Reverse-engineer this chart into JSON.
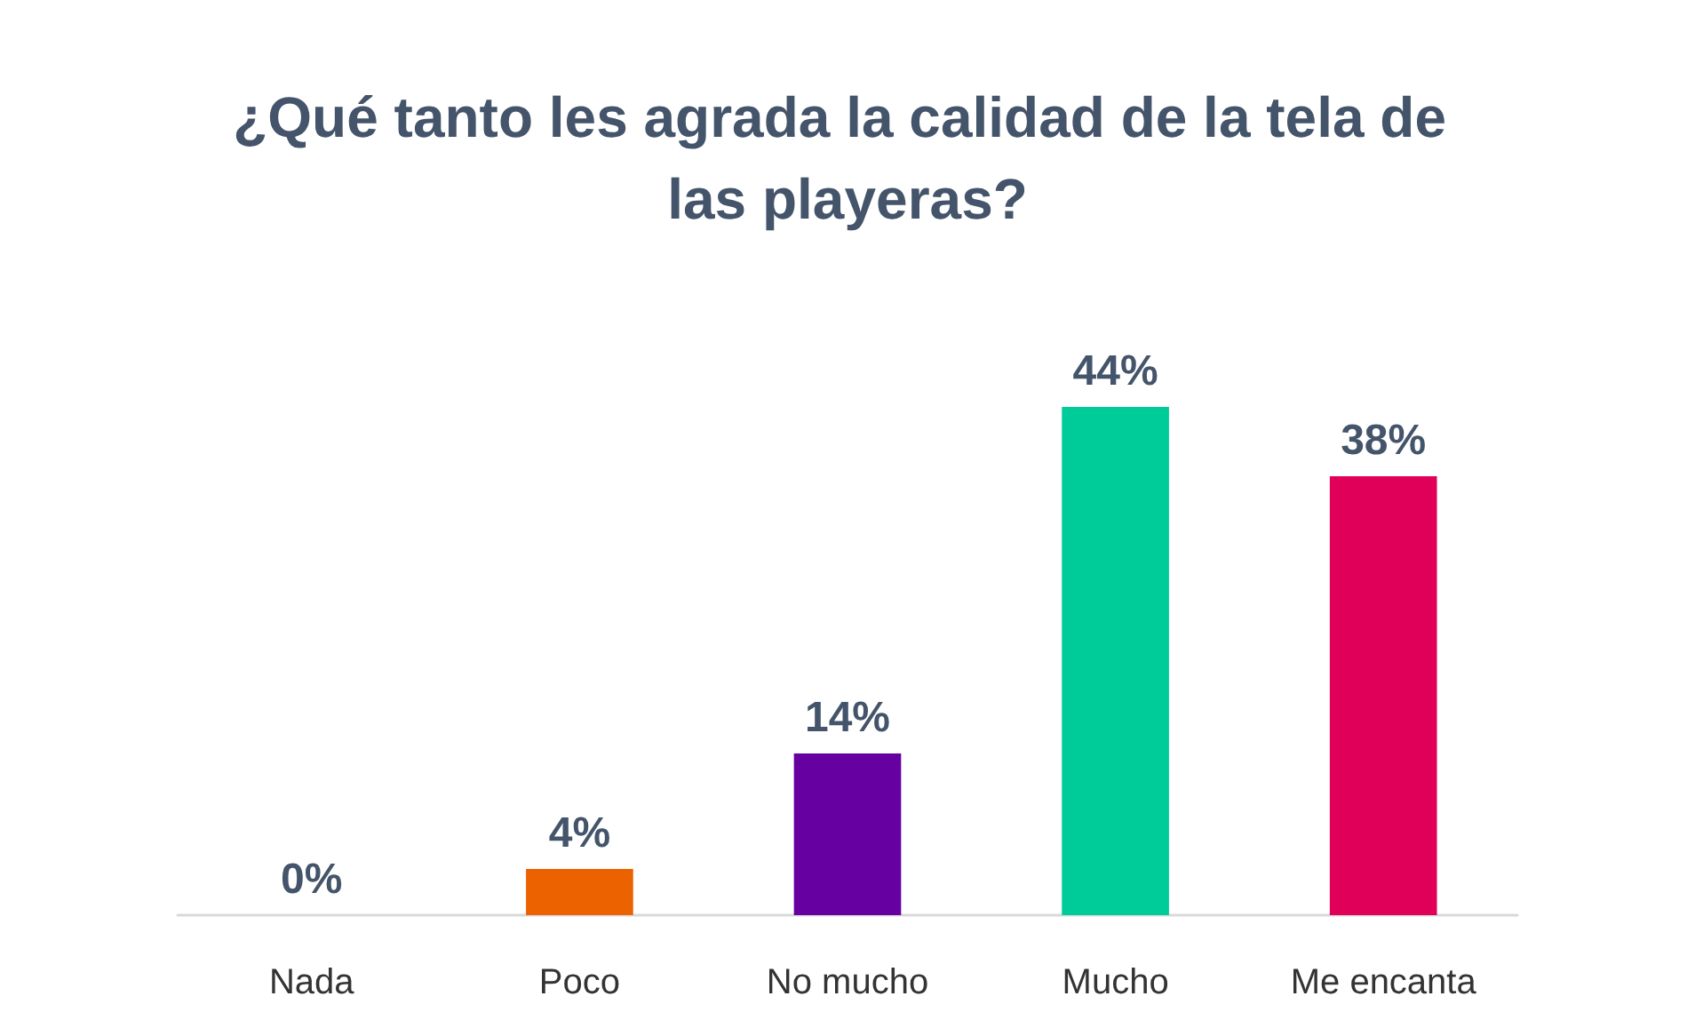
{
  "chart_data": {
    "type": "bar",
    "title": "¿Qué tanto les agrada la calidad de la tela de las playeras?",
    "categories": [
      "Nada",
      "Poco",
      "No mucho",
      "Mucho",
      "Me encanta"
    ],
    "values": [
      0,
      4,
      14,
      44,
      38
    ],
    "colors": [
      "#000000",
      "#ec6100",
      "#6600a0",
      "#00cc99",
      "#e0005a"
    ],
    "value_labels": [
      "0%",
      "4%",
      "14%",
      "44%",
      "38%"
    ]
  }
}
